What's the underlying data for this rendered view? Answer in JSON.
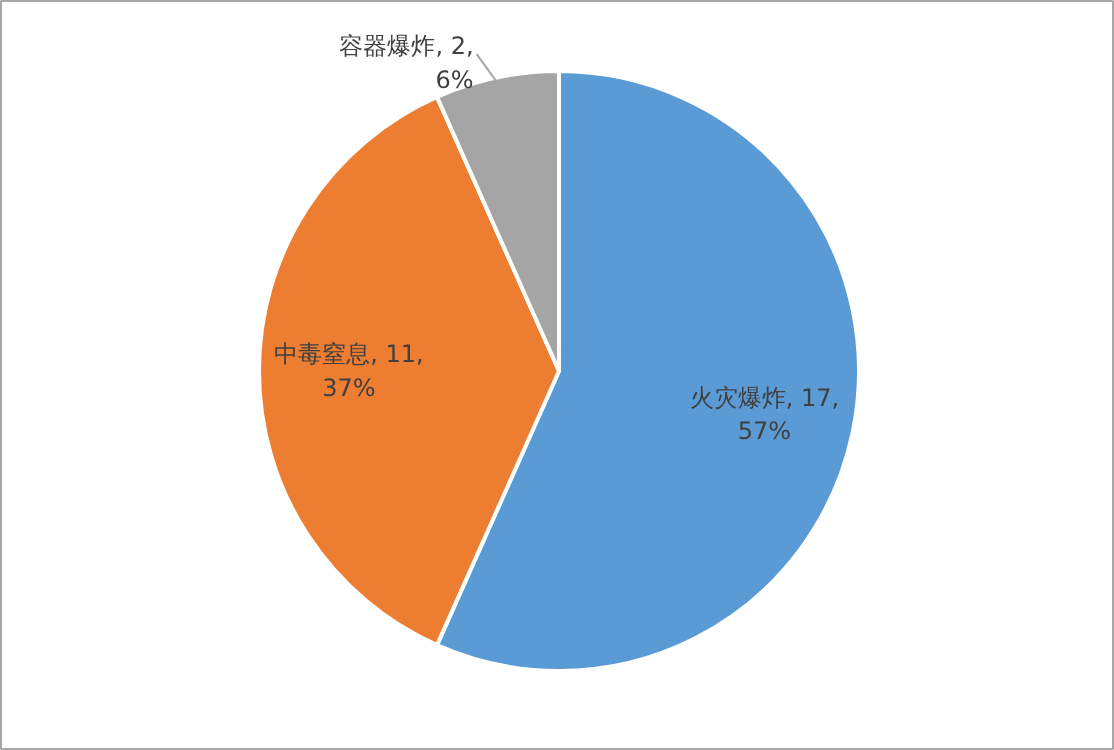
{
  "chart_data": {
    "type": "pie",
    "categories": [
      "火灾爆炸",
      "中毒窒息",
      "容器爆炸"
    ],
    "values": [
      17,
      11,
      2
    ],
    "colors": [
      "#5b9bd5",
      "#ed7d31",
      "#a5a5a5"
    ],
    "value_labels": [
      "17,\n57%",
      "11,\n37%",
      "2,\n6%"
    ],
    "legend": false
  }
}
